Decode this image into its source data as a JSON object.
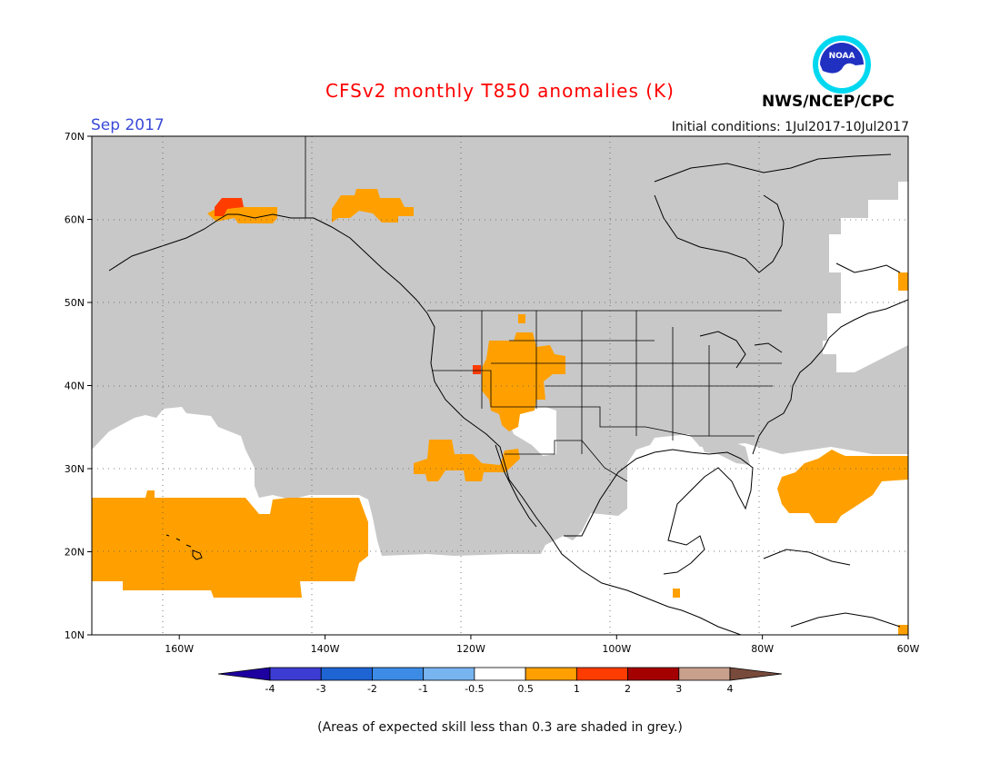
{
  "header": {
    "title": "CFSv2 monthly T850 anomalies (K)",
    "title_color": "#ff0000",
    "month": "Sep 2017",
    "month_color": "#3a4bd8",
    "initial_conditions": "Initial conditions: 1Jul2017-10Jul2017",
    "agency": "NWS/NCEP/CPC",
    "logo_icon": "noaa-logo-icon",
    "logo_text": "NOAA"
  },
  "map": {
    "lon_range": [
      -172,
      -60
    ],
    "lat_range": [
      10,
      70
    ],
    "lat_ticks": [
      {
        "value": 70,
        "label": "70N"
      },
      {
        "value": 60,
        "label": "60N"
      },
      {
        "value": 50,
        "label": "50N"
      },
      {
        "value": 40,
        "label": "40N"
      },
      {
        "value": 30,
        "label": "30N"
      },
      {
        "value": 20,
        "label": "20N"
      },
      {
        "value": 10,
        "label": "10N"
      }
    ],
    "lon_ticks": [
      {
        "value": -160,
        "label": "160W"
      },
      {
        "value": -140,
        "label": "140W"
      },
      {
        "value": -120,
        "label": "120W"
      },
      {
        "value": -100,
        "label": "100W"
      },
      {
        "value": -80,
        "label": "80W"
      },
      {
        "value": -60,
        "label": "60W"
      }
    ],
    "grid": "dotted",
    "skill_mask_color": "#c8c8c8",
    "colors": {
      "c05_1": "#ffa000",
      "c1_2": "#ff3c00"
    }
  },
  "colorbar": {
    "colors": [
      "#1e00a0",
      "#3c3cd2",
      "#1e64d2",
      "#3c8ce6",
      "#78b4f0",
      "#ffffff",
      "#ffa000",
      "#ff3c00",
      "#a50000",
      "#c8a08c",
      "#784a3c"
    ],
    "labels": [
      "-4",
      "-3",
      "-2",
      "-1",
      "-0.5",
      "0.5",
      "1",
      "2",
      "3",
      "4"
    ]
  },
  "footnote": "(Areas of expected skill less than 0.3 are shaded in grey.)"
}
